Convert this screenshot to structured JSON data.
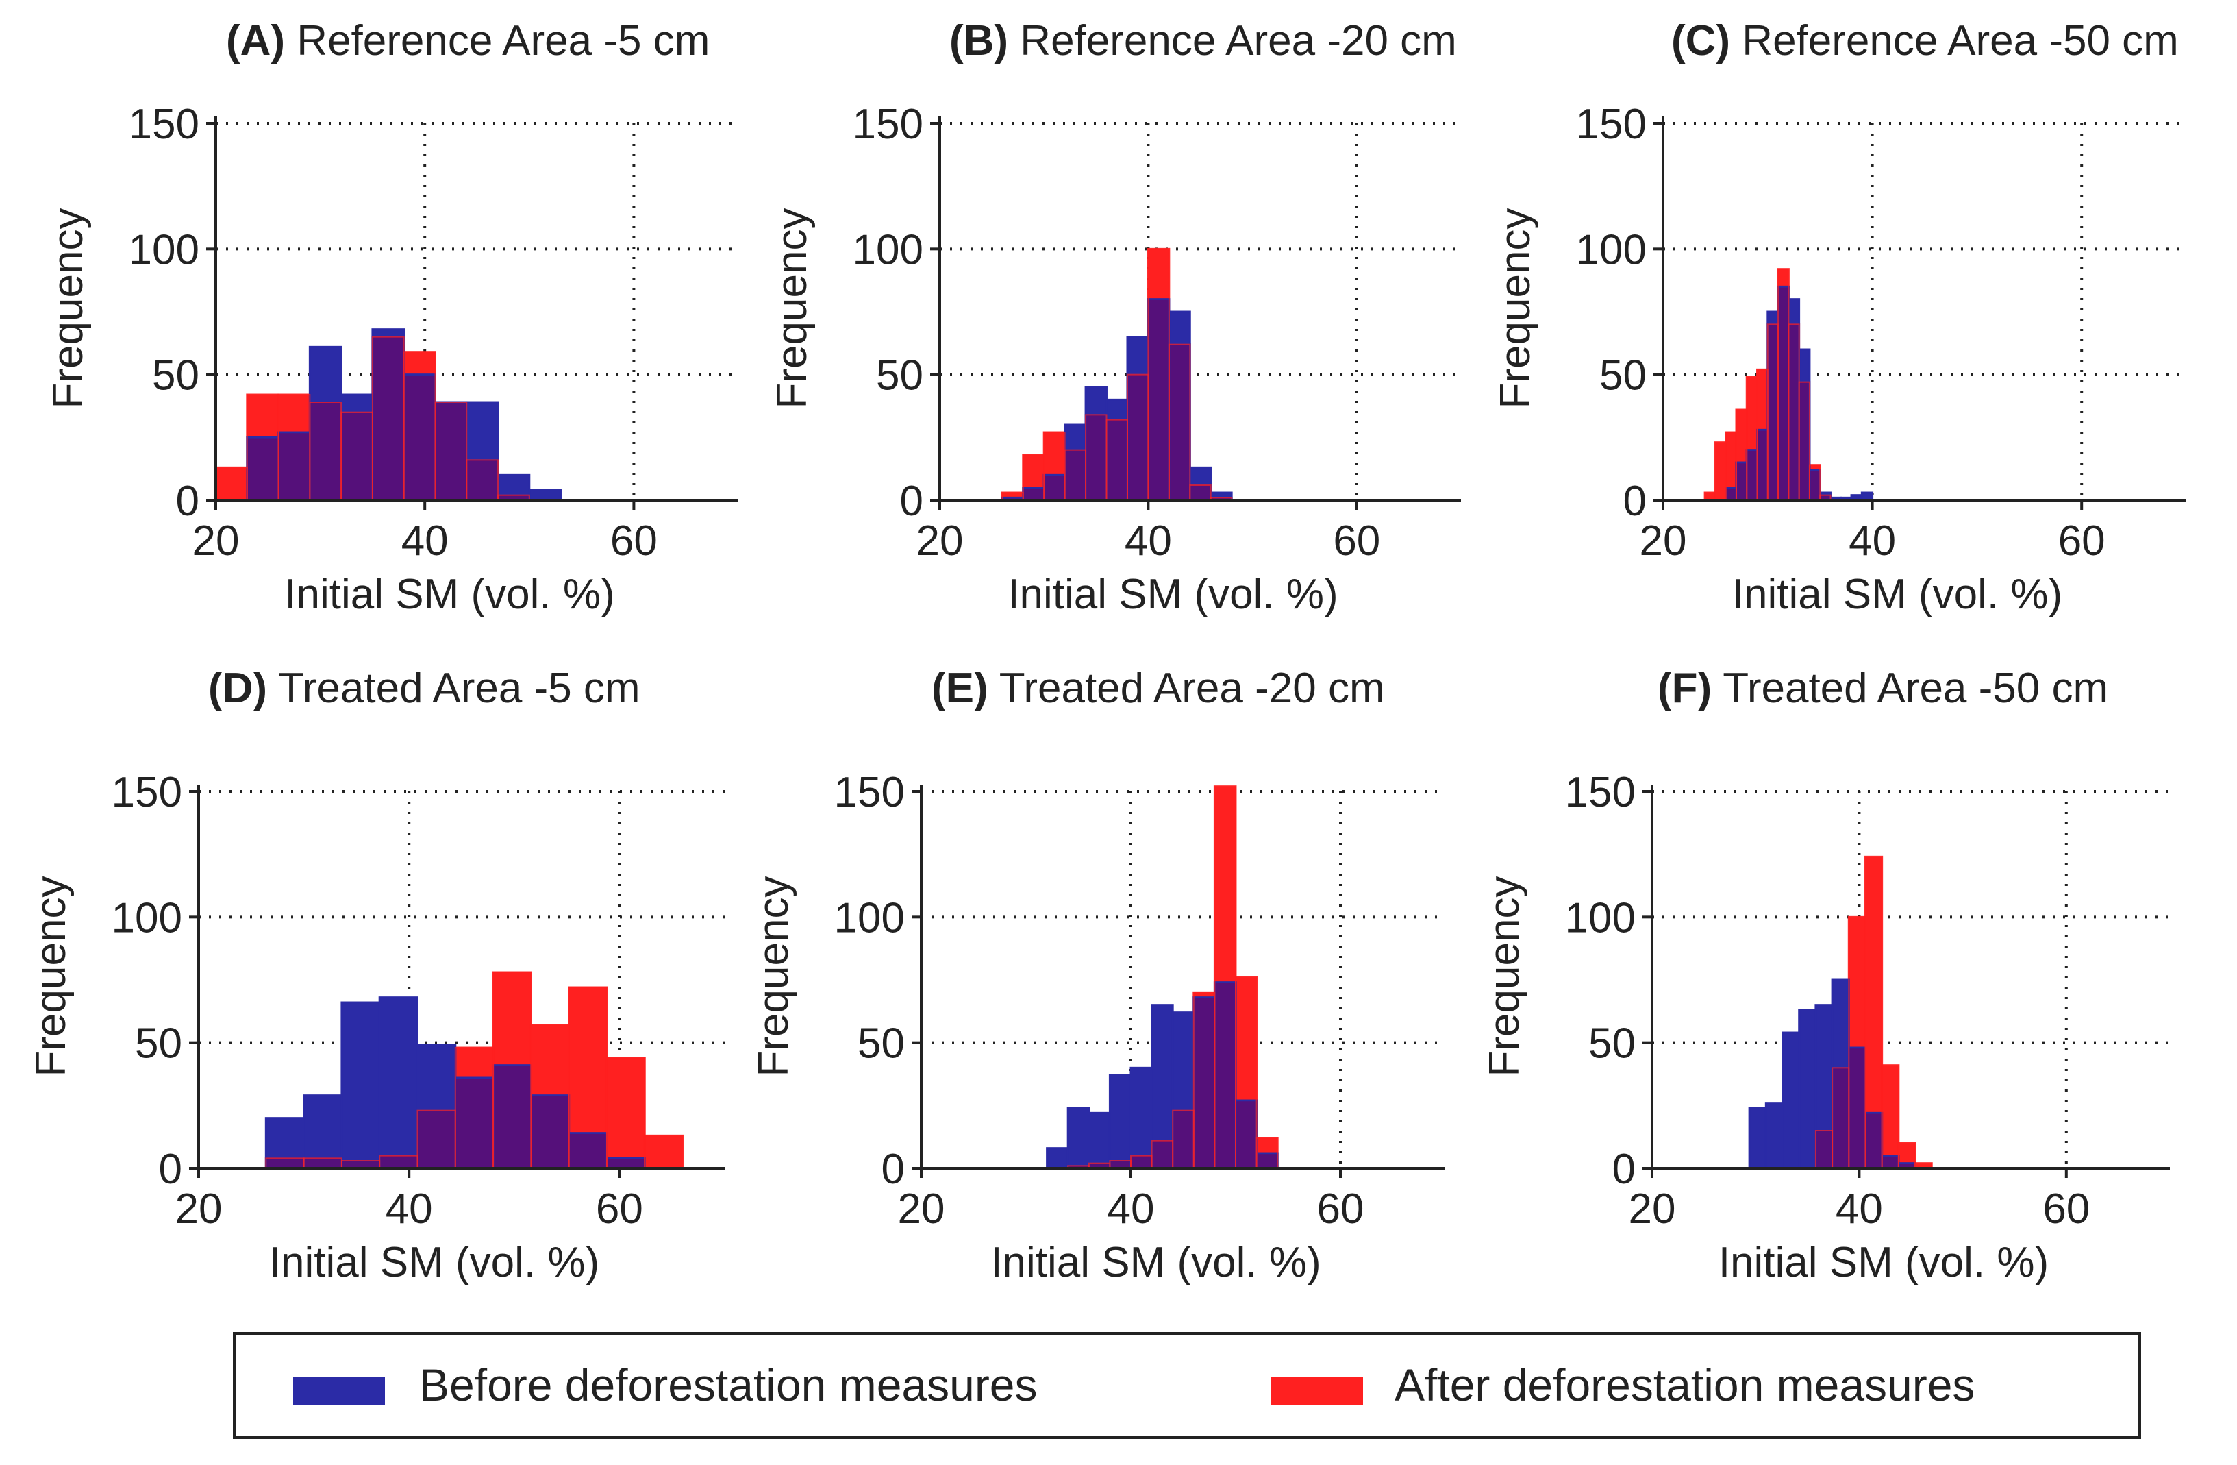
{
  "colors": {
    "before": "#2b2ba6",
    "after": "#ff2020",
    "overlap": "#55107a",
    "axis": "#222222",
    "grid": "#222222",
    "text": "#222222"
  },
  "legend": {
    "before_label": "Before deforestation measures",
    "after_label": "After deforestation measures"
  },
  "chart_data": [
    {
      "type": "bar",
      "panel": "A",
      "title": "Reference Area -5 cm",
      "xlabel": "Initial SM (vol. %)",
      "ylabel": "Frequency",
      "xlim": [
        20,
        70
      ],
      "ylim": [
        0,
        150
      ],
      "xticks": [
        20,
        40,
        60
      ],
      "yticks": [
        0,
        50,
        100,
        150
      ],
      "grid": true,
      "bin_width": 3,
      "series": [
        {
          "name": "Before deforestation measures",
          "bins": [
            [
              23,
              25
            ],
            [
              26,
              27
            ],
            [
              29,
              61
            ],
            [
              32,
              42
            ],
            [
              35,
              68
            ],
            [
              38,
              50
            ],
            [
              41,
              39
            ],
            [
              44,
              39
            ],
            [
              47,
              10
            ],
            [
              50,
              4
            ]
          ]
        },
        {
          "name": "After deforestation measures",
          "bins": [
            [
              20,
              13
            ],
            [
              23,
              42
            ],
            [
              26,
              42
            ],
            [
              29,
              39
            ],
            [
              32,
              35
            ],
            [
              35,
              65
            ],
            [
              38,
              59
            ],
            [
              41,
              39
            ],
            [
              44,
              16
            ],
            [
              47,
              2
            ]
          ]
        }
      ]
    },
    {
      "type": "bar",
      "panel": "B",
      "title": "Reference Area -20 cm",
      "xlabel": "Initial SM (vol. %)",
      "ylabel": "Frequency",
      "xlim": [
        20,
        70
      ],
      "ylim": [
        0,
        150
      ],
      "xticks": [
        20,
        40,
        60
      ],
      "yticks": [
        0,
        50,
        100,
        150
      ],
      "grid": true,
      "bin_width": 2,
      "series": [
        {
          "name": "Before deforestation measures",
          "bins": [
            [
              26,
              1
            ],
            [
              28,
              5
            ],
            [
              30,
              10
            ],
            [
              32,
              30
            ],
            [
              34,
              45
            ],
            [
              36,
              40
            ],
            [
              38,
              65
            ],
            [
              40,
              80
            ],
            [
              42,
              75
            ],
            [
              44,
              13
            ],
            [
              46,
              3
            ]
          ]
        },
        {
          "name": "After deforestation measures",
          "bins": [
            [
              26,
              3
            ],
            [
              28,
              18
            ],
            [
              30,
              27
            ],
            [
              32,
              20
            ],
            [
              34,
              34
            ],
            [
              36,
              32
            ],
            [
              38,
              50
            ],
            [
              40,
              100
            ],
            [
              42,
              62
            ],
            [
              44,
              6
            ],
            [
              46,
              1
            ]
          ]
        }
      ]
    },
    {
      "type": "bar",
      "panel": "C",
      "title": "Reference Area -50 cm",
      "xlabel": "Initial SM (vol. %)",
      "ylabel": "Frequency",
      "xlim": [
        20,
        70
      ],
      "ylim": [
        0,
        150
      ],
      "xticks": [
        20,
        40,
        60
      ],
      "yticks": [
        0,
        50,
        100,
        150
      ],
      "grid": true,
      "bin_width": 1,
      "series": [
        {
          "name": "Before deforestation measures",
          "bins": [
            [
              26,
              5
            ],
            [
              27,
              15
            ],
            [
              28,
              20
            ],
            [
              29,
              28
            ],
            [
              30,
              75
            ],
            [
              31,
              85
            ],
            [
              32,
              80
            ],
            [
              33,
              60
            ],
            [
              34,
              12
            ],
            [
              35,
              3
            ],
            [
              36,
              1
            ],
            [
              37,
              1
            ],
            [
              38,
              2
            ],
            [
              39,
              3
            ]
          ]
        },
        {
          "name": "After deforestation measures",
          "bins": [
            [
              24,
              3
            ],
            [
              25,
              23
            ],
            [
              26,
              27
            ],
            [
              27,
              36
            ],
            [
              28,
              49
            ],
            [
              29,
              52
            ],
            [
              30,
              70
            ],
            [
              31,
              92
            ],
            [
              32,
              70
            ],
            [
              33,
              47
            ],
            [
              34,
              14
            ],
            [
              35,
              2
            ]
          ]
        }
      ]
    },
    {
      "type": "bar",
      "panel": "D",
      "title": "Treated Area -5 cm",
      "xlabel": "Initial SM (vol. %)",
      "ylabel": "Frequency",
      "xlim": [
        20,
        70
      ],
      "ylim": [
        0,
        150
      ],
      "xticks": [
        20,
        40,
        60
      ],
      "yticks": [
        0,
        50,
        100,
        150
      ],
      "grid": true,
      "bin_width": 3.6,
      "series": [
        {
          "name": "Before deforestation measures",
          "bins": [
            [
              26.4,
              20
            ],
            [
              30,
              29
            ],
            [
              33.6,
              66
            ],
            [
              37.2,
              68
            ],
            [
              40.8,
              49
            ],
            [
              44.4,
              36
            ],
            [
              48,
              41
            ],
            [
              51.6,
              29
            ],
            [
              55.2,
              14
            ],
            [
              58.8,
              4
            ]
          ]
        },
        {
          "name": "After deforestation measures",
          "bins": [
            [
              26.4,
              4
            ],
            [
              30,
              4
            ],
            [
              33.6,
              3
            ],
            [
              37.2,
              5
            ],
            [
              40.8,
              23
            ],
            [
              44.4,
              48
            ],
            [
              48,
              78
            ],
            [
              51.6,
              57
            ],
            [
              55.2,
              72
            ],
            [
              58.8,
              44
            ],
            [
              62.4,
              13
            ]
          ]
        }
      ]
    },
    {
      "type": "bar",
      "panel": "E",
      "title": "Treated Area -20 cm",
      "xlabel": "Initial SM (vol. %)",
      "ylabel": "Frequency",
      "xlim": [
        20,
        70
      ],
      "ylim": [
        0,
        150
      ],
      "xticks": [
        20,
        40,
        60
      ],
      "yticks": [
        0,
        50,
        100,
        150
      ],
      "grid": true,
      "bin_width": 2,
      "series": [
        {
          "name": "Before deforestation measures",
          "bins": [
            [
              32,
              8
            ],
            [
              34,
              24
            ],
            [
              36,
              22
            ],
            [
              38,
              37
            ],
            [
              40,
              40
            ],
            [
              42,
              65
            ],
            [
              44,
              62
            ],
            [
              46,
              68
            ],
            [
              48,
              74
            ],
            [
              50,
              27
            ],
            [
              52,
              6
            ]
          ]
        },
        {
          "name": "After deforestation measures",
          "bins": [
            [
              34,
              1
            ],
            [
              36,
              2
            ],
            [
              38,
              3
            ],
            [
              40,
              5
            ],
            [
              42,
              11
            ],
            [
              44,
              23
            ],
            [
              46,
              70
            ],
            [
              48,
              152
            ],
            [
              50,
              76
            ],
            [
              52,
              12
            ]
          ]
        }
      ]
    },
    {
      "type": "bar",
      "panel": "F",
      "title": "Treated Area -50 cm",
      "xlabel": "Initial SM (vol. %)",
      "ylabel": "Frequency",
      "xlim": [
        20,
        70
      ],
      "ylim": [
        0,
        150
      ],
      "xticks": [
        20,
        40,
        60
      ],
      "yticks": [
        0,
        50,
        100,
        150
      ],
      "grid": true,
      "bin_width": 1.6,
      "series": [
        {
          "name": "Before deforestation measures",
          "bins": [
            [
              29.4,
              24
            ],
            [
              31,
              26
            ],
            [
              32.6,
              54
            ],
            [
              34.2,
              63
            ],
            [
              35.8,
              65
            ],
            [
              37.4,
              75
            ],
            [
              39,
              48
            ],
            [
              40.6,
              22
            ],
            [
              42.2,
              5
            ],
            [
              43.8,
              2
            ]
          ]
        },
        {
          "name": "After deforestation measures",
          "bins": [
            [
              35.8,
              15
            ],
            [
              37.4,
              40
            ],
            [
              39,
              100
            ],
            [
              40.6,
              124
            ],
            [
              42.2,
              41
            ],
            [
              43.8,
              10
            ],
            [
              45.4,
              2
            ]
          ]
        }
      ]
    }
  ]
}
